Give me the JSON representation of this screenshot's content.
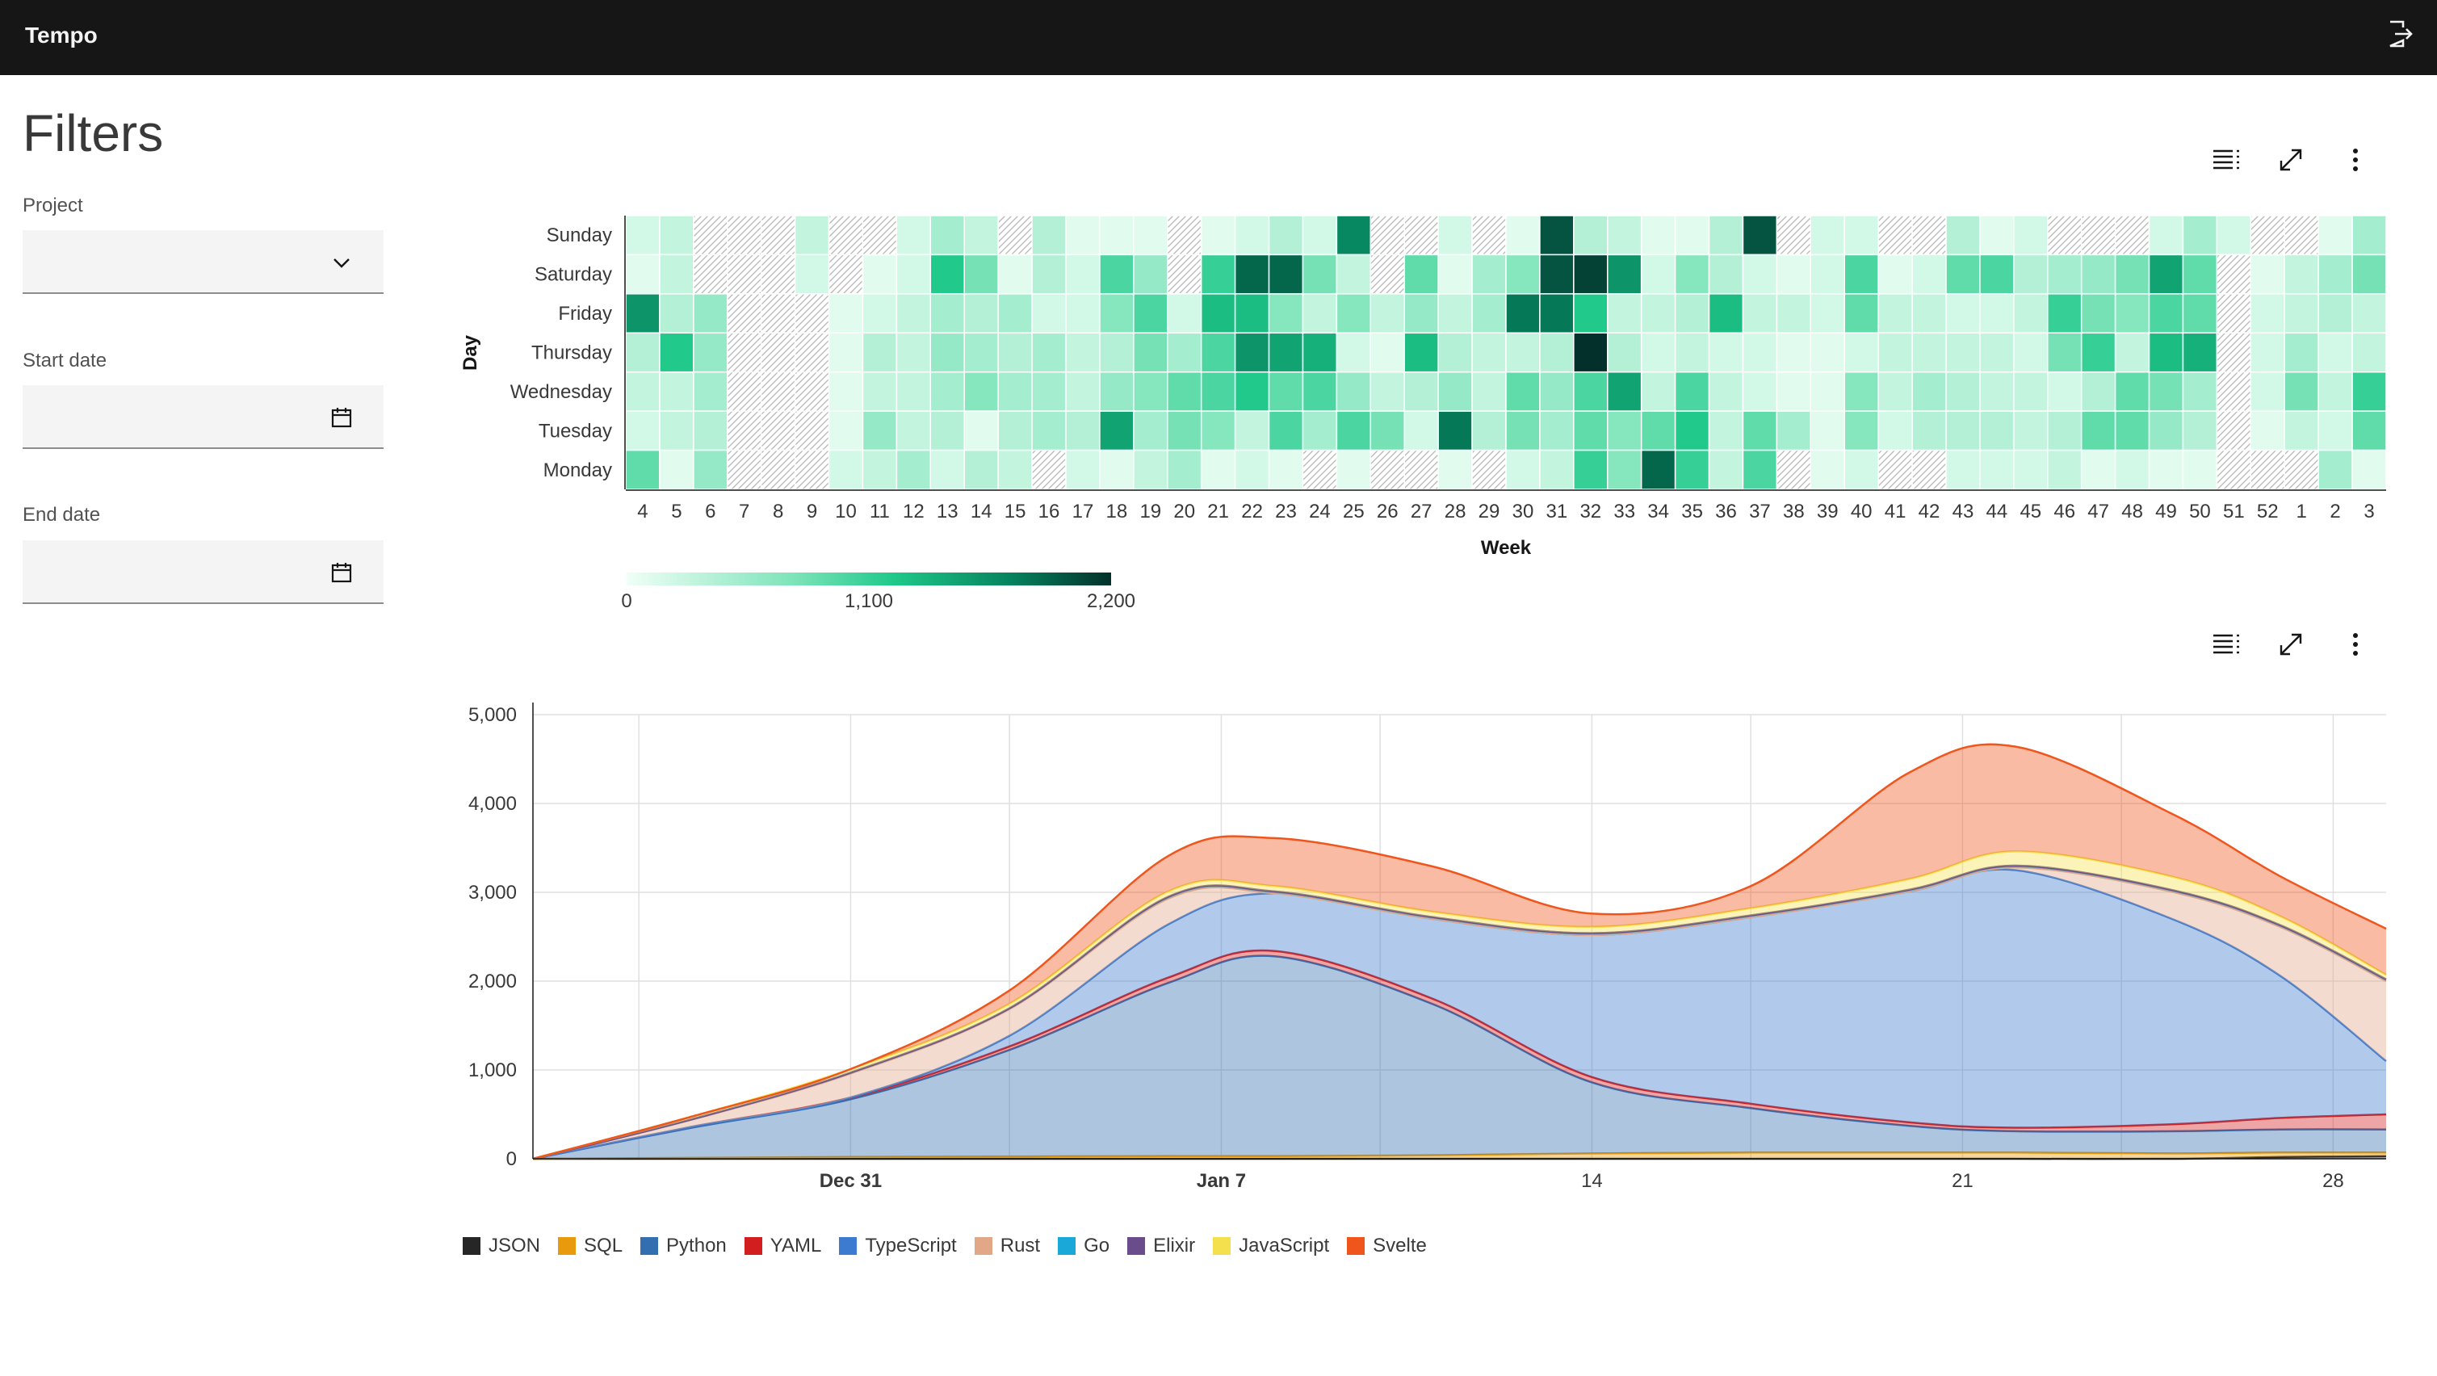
{
  "header": {
    "app_title": "Tempo",
    "logout_icon": "logout-icon"
  },
  "filters": {
    "title": "Filters",
    "project_label": "Project",
    "project_value": "",
    "start_date_label": "Start date",
    "start_date_value": "",
    "end_date_label": "End date",
    "end_date_value": ""
  },
  "toolbar_icons": [
    "table-icon",
    "maximize-icon",
    "overflow-menu-icon"
  ],
  "colors": {
    "header_bg": "#161616",
    "heatmap_low": "#f0fff7",
    "heatmap_high": "#03302a"
  },
  "chart_data": [
    {
      "type": "heatmap",
      "title": "",
      "xlabel": "Week",
      "ylabel": "Day",
      "y_categories": [
        "Sunday",
        "Saturday",
        "Friday",
        "Thursday",
        "Wednesday",
        "Tuesday",
        "Monday"
      ],
      "x_categories": [
        "4",
        "5",
        "6",
        "7",
        "8",
        "9",
        "10",
        "11",
        "12",
        "13",
        "14",
        "15",
        "16",
        "17",
        "18",
        "19",
        "20",
        "21",
        "22",
        "23",
        "24",
        "25",
        "26",
        "27",
        "28",
        "29",
        "30",
        "31",
        "32",
        "33",
        "34",
        "35",
        "36",
        "37",
        "38",
        "39",
        "40",
        "41",
        "42",
        "43",
        "44",
        "45",
        "46",
        "47",
        "48",
        "49",
        "50",
        "51",
        "52",
        "1",
        "2",
        "3"
      ],
      "value_range": [
        0,
        2200
      ],
      "scale_ticks": [
        "0",
        "1,100",
        "2,200"
      ],
      "values": [
        [
          200,
          300,
          null,
          null,
          null,
          300,
          null,
          null,
          200,
          500,
          300,
          null,
          400,
          100,
          100,
          100,
          null,
          100,
          200,
          400,
          200,
          1700,
          null,
          null,
          200,
          null,
          100,
          2000,
          400,
          300,
          100,
          100,
          400,
          2000,
          null,
          200,
          200,
          null,
          null,
          400,
          100,
          200,
          null,
          null,
          null,
          200,
          500,
          200,
          null,
          null,
          100,
          500
        ],
        [
          100,
          300,
          null,
          null,
          null,
          200,
          null,
          100,
          200,
          1200,
          800,
          100,
          400,
          200,
          1000,
          600,
          null,
          1100,
          1900,
          1900,
          800,
          300,
          null,
          900,
          100,
          500,
          700,
          2000,
          2100,
          1600,
          200,
          700,
          400,
          200,
          100,
          200,
          1000,
          100,
          200,
          900,
          1000,
          400,
          500,
          600,
          800,
          1500,
          900,
          null,
          100,
          300,
          500,
          800
        ],
        [
          1600,
          400,
          600,
          null,
          null,
          null,
          100,
          200,
          300,
          500,
          400,
          500,
          200,
          200,
          700,
          1000,
          200,
          1300,
          1300,
          700,
          300,
          700,
          300,
          600,
          300,
          500,
          1800,
          1800,
          1200,
          300,
          300,
          400,
          1300,
          300,
          300,
          200,
          900,
          300,
          300,
          200,
          200,
          300,
          1100,
          800,
          700,
          1000,
          900,
          null,
          200,
          300,
          400,
          300
        ],
        [
          400,
          1200,
          600,
          null,
          null,
          null,
          100,
          400,
          300,
          600,
          500,
          400,
          500,
          300,
          400,
          800,
          500,
          1000,
          1600,
          1500,
          1400,
          200,
          100,
          1300,
          400,
          300,
          300,
          400,
          2400,
          400,
          200,
          300,
          200,
          200,
          100,
          100,
          200,
          300,
          300,
          300,
          300,
          200,
          800,
          1100,
          300,
          1300,
          1400,
          null,
          200,
          500,
          200,
          300
        ],
        [
          300,
          300,
          500,
          null,
          null,
          null,
          100,
          300,
          300,
          500,
          700,
          500,
          500,
          300,
          600,
          700,
          900,
          1000,
          1200,
          900,
          1000,
          600,
          300,
          400,
          600,
          300,
          900,
          600,
          1000,
          1500,
          300,
          1000,
          300,
          200,
          100,
          100,
          700,
          300,
          500,
          400,
          300,
          300,
          200,
          400,
          900,
          800,
          500,
          null,
          200,
          800,
          300,
          1100
        ],
        [
          200,
          300,
          400,
          null,
          null,
          null,
          100,
          600,
          300,
          400,
          100,
          400,
          500,
          400,
          1500,
          500,
          800,
          700,
          300,
          1000,
          500,
          1000,
          800,
          200,
          1800,
          400,
          800,
          500,
          900,
          700,
          900,
          1200,
          300,
          900,
          500,
          100,
          700,
          200,
          400,
          400,
          400,
          300,
          400,
          900,
          900,
          600,
          400,
          null,
          100,
          300,
          200,
          900
        ],
        [
          900,
          100,
          600,
          null,
          null,
          null,
          200,
          300,
          500,
          200,
          400,
          300,
          null,
          200,
          100,
          300,
          500,
          100,
          200,
          100,
          null,
          100,
          null,
          null,
          100,
          null,
          200,
          300,
          1100,
          700,
          1900,
          1100,
          300,
          1000,
          null,
          100,
          200,
          null,
          null,
          200,
          200,
          200,
          300,
          100,
          200,
          100,
          100,
          null,
          null,
          null,
          500,
          100
        ]
      ]
    },
    {
      "type": "area",
      "stacked": true,
      "title": "",
      "x_ticks": [
        "Dec 31",
        "Jan 7",
        "14",
        "21",
        "28"
      ],
      "x_start": "Dec 25",
      "x_end": "Jan 29",
      "y_ticks": [
        "0",
        "1,000",
        "2,000",
        "3,000",
        "4,000",
        "5,000"
      ],
      "ylim": [
        0,
        5000
      ],
      "grid": true,
      "legend_position": "bottom-left",
      "x": [
        "Dec 25",
        "Dec 28",
        "Dec 31",
        "Jan 3",
        "Jan 6",
        "Jan 8",
        "Jan 11",
        "Jan 14",
        "Jan 17",
        "Jan 20",
        "Jan 22",
        "Jan 25",
        "Jan 27",
        "Jan 29"
      ],
      "series": [
        {
          "name": "JSON",
          "color": "#262626",
          "values": [
            0,
            0,
            0,
            0,
            0,
            0,
            0,
            0,
            0,
            0,
            0,
            0,
            20,
            30
          ]
        },
        {
          "name": "SQL",
          "color": "#e69a0c",
          "values": [
            0,
            10,
            20,
            25,
            30,
            30,
            40,
            60,
            70,
            70,
            70,
            60,
            50,
            40
          ]
        },
        {
          "name": "Python",
          "color": "#336eb0",
          "values": [
            0,
            340,
            650,
            1200,
            1950,
            2250,
            1700,
            800,
            500,
            300,
            240,
            250,
            260,
            260
          ]
        },
        {
          "name": "YAML",
          "color": "#d21e1e",
          "values": [
            0,
            10,
            20,
            40,
            60,
            60,
            60,
            60,
            50,
            40,
            40,
            80,
            130,
            170
          ]
        },
        {
          "name": "TypeScript",
          "color": "#3d7bd0",
          "values": [
            0,
            0,
            0,
            120,
            600,
            650,
            900,
            1600,
            2100,
            2600,
            2900,
            2300,
            1600,
            600
          ]
        },
        {
          "name": "Rust",
          "color": "#e2a787",
          "values": [
            0,
            80,
            270,
            300,
            290,
            0,
            0,
            0,
            0,
            0,
            30,
            310,
            550,
            900
          ]
        },
        {
          "name": "Go",
          "color": "#1aa8d8",
          "values": [
            0,
            5,
            10,
            10,
            20,
            20,
            20,
            20,
            20,
            20,
            20,
            20,
            20,
            20
          ]
        },
        {
          "name": "Elixir",
          "color": "#6a4c8c",
          "values": [
            0,
            0,
            0,
            0,
            0,
            0,
            0,
            0,
            0,
            0,
            0,
            0,
            0,
            0
          ]
        },
        {
          "name": "JavaScript",
          "color": "#f4e04d",
          "values": [
            0,
            30,
            40,
            50,
            60,
            60,
            60,
            70,
            80,
            120,
            160,
            150,
            100,
            50
          ]
        },
        {
          "name": "Svelte",
          "color": "#f0551c",
          "values": [
            0,
            0,
            0,
            150,
            400,
            540,
            510,
            150,
            250,
            1200,
            1180,
            700,
            450,
            520
          ]
        }
      ]
    }
  ]
}
